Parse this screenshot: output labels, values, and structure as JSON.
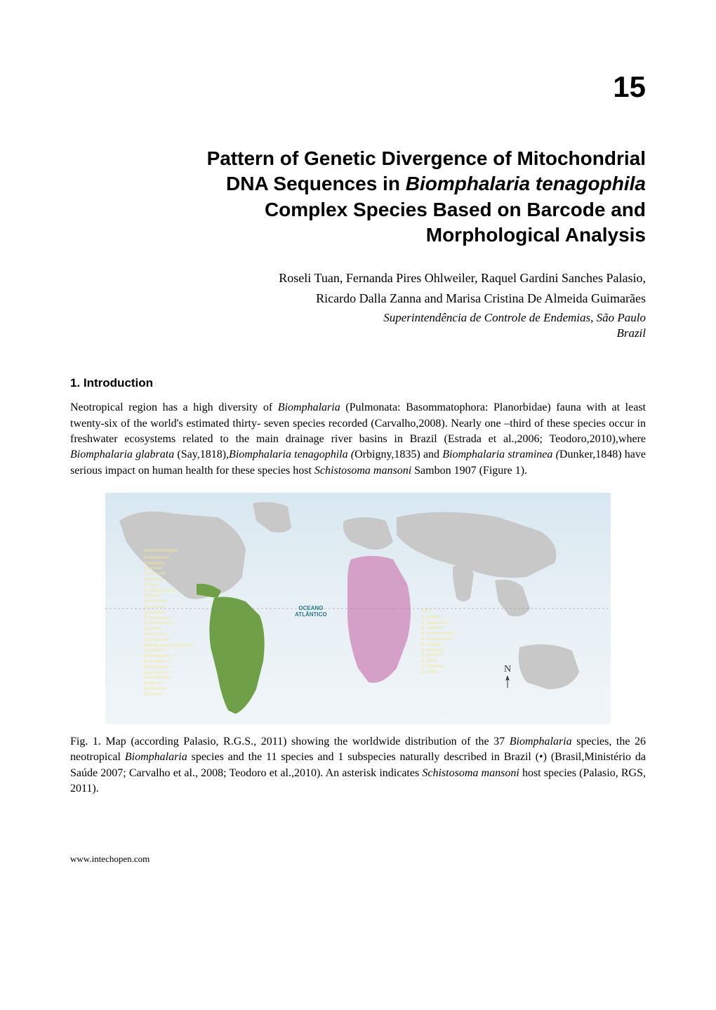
{
  "chapter": {
    "number": "15",
    "title_parts": {
      "line1": "Pattern of Genetic Divergence of Mitochondrial",
      "line2_plain1": "DNA Sequences in ",
      "line2_italic": "Biomphalaria tenagophila",
      "line3": "Complex Species Based on Barcode and",
      "line4": "Morphological Analysis"
    },
    "authors_line1": "Roseli Tuan, Fernanda Pires Ohlweiler, Raquel Gardini Sanches Palasio,",
    "authors_line2": "Ricardo Dalla Zanna and Marisa Cristina De Almeida Guimarães",
    "affiliation_line1": "Superintendência de Controle de Endemias, São Paulo",
    "affiliation_line2": "Brazil"
  },
  "section1": {
    "heading": "1. Introduction",
    "paragraph_parts": [
      {
        "text": "Neotropical region has a high diversity of ",
        "italic": false
      },
      {
        "text": "Biomphalaria",
        "italic": true
      },
      {
        "text": " (Pulmonata: Basommatophora: Planorbidae) fauna with at least twenty-six of the world's estimated thirty- seven species recorded (Carvalho,2008). Nearly one –third of these species occur in freshwater ecosystems related to the main drainage river basins in Brazil (Estrada et al.,2006; Teodoro,2010),where ",
        "italic": false
      },
      {
        "text": "Biomphalaria glabrata",
        "italic": true
      },
      {
        "text": " (Say,1818),",
        "italic": false
      },
      {
        "text": "Biomphalaria tenagophila (",
        "italic": true
      },
      {
        "text": "Orbigny,1835) and ",
        "italic": false
      },
      {
        "text": "Biomphalaria straminea (",
        "italic": true
      },
      {
        "text": "Dunker,1848) have serious impact on human health for these species host ",
        "italic": false
      },
      {
        "text": "Schistosoma mansoni",
        "italic": true
      },
      {
        "text": " Sambon 1907 (Figure 1).",
        "italic": false
      }
    ]
  },
  "figure": {
    "map": {
      "background_gradient": [
        "#d8e8f0",
        "#e8f0f5",
        "#f0f5f8"
      ],
      "ocean_label": "OCEANO\nATLÂNTICO",
      "ocean_label_color": "#2a7a8a",
      "compass_n": "N",
      "neotropical_color": "#6fa048",
      "africa_color": "#d4a0c8",
      "other_land_color": "#c8c8c8",
      "legend_color": "#f5e69a",
      "neotropical_legend": {
        "title": "Neotropical region",
        "species": [
          "B.havanensis",
          "B.helophila",
          "B.sericea",
          "B.obstructa",
          "B.orbignyi",
          "B.trigyra",
          "B. temascalensis",
          "B.pronei*",
          "B.sub-prona",
          "B.andecola",
          "B.equatoria",
          "B.nicaraguana",
          "B.aff.straminea",
          "B.edisoni",
          "B.kuhniana •",
          "B.amazonica •",
          "B.tenagophila guaibensis •",
          "B.glabrata • *",
          "B.tenagophila • *",
          "B.straminea • *",
          "B.intermedia •",
          "B.peregrina •",
          "B.occidentalis •",
          "B.oligoza •",
          "B.schrammi •",
          "B.cousini •"
        ]
      },
      "africa_legend": {
        "title": "Africa",
        "species": [
          "B. pfeifferi*",
          "B. alexandrina*",
          "B. sudanica*",
          "B. choanomphala*",
          "B. camerunensis*",
          "B. stanleyi",
          "B. hermanni",
          "B. germaini",
          "B. gaudi",
          "B. angulosa",
          "B. smithi"
        ]
      }
    },
    "caption_parts": [
      {
        "text": "Fig. 1. Map (according Palasio, R.G.S., 2011) showing the worldwide distribution of the 37 ",
        "italic": false
      },
      {
        "text": "Biomphalaria",
        "italic": true
      },
      {
        "text": " species, the 26 neotropical ",
        "italic": false
      },
      {
        "text": "Biomphalaria",
        "italic": true
      },
      {
        "text": " species and the 11 species and 1 subspecies naturally described in Brazil (•) (Brasil,Ministério da Saúde 2007; Carvalho et al., 2008; Teodoro et al.,2010). An asterisk indicates ",
        "italic": false
      },
      {
        "text": "Schistosoma mansoni",
        "italic": true
      },
      {
        "text": " host species (Palasio, RGS, 2011).",
        "italic": false
      }
    ]
  },
  "footer": {
    "url": "www.intechopen.com"
  }
}
